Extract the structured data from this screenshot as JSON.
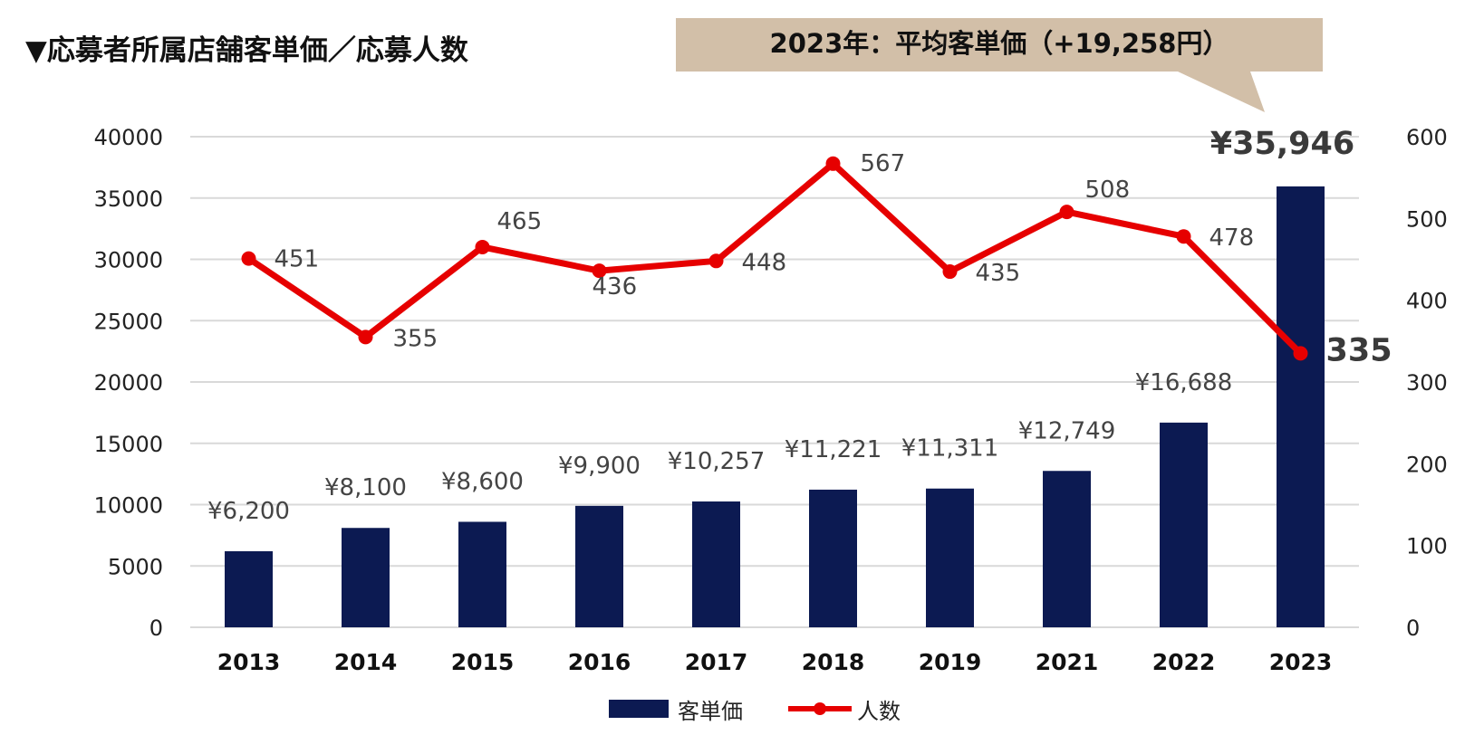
{
  "page_title": "▼応募者所属店舗客単価／応募人数",
  "callout_text": "2023年：平均客単価（+19,258円）",
  "colors": {
    "bar": "#0c1a52",
    "line": "#e60000",
    "callout_bg": "#d2bfa8",
    "grid": "#d9d9d9"
  },
  "legend": {
    "bar_label": "客単価",
    "line_label": "人数"
  },
  "chart_data": {
    "type": "bar+line",
    "title": "▼応募者所属店舗客単価／応募人数",
    "categories": [
      "2013",
      "2014",
      "2015",
      "2016",
      "2017",
      "2018",
      "2019",
      "2021",
      "2022",
      "2023"
    ],
    "y_left": {
      "min": 0,
      "max": 40000,
      "step": 5000,
      "ticks": [
        "0",
        "5000",
        "10000",
        "15000",
        "20000",
        "25000",
        "30000",
        "35000",
        "40000"
      ]
    },
    "y_right": {
      "min": 0,
      "max": 600,
      "step": 100,
      "ticks": [
        "0",
        "100",
        "200",
        "300",
        "400",
        "500",
        "600"
      ]
    },
    "series": [
      {
        "name": "客単価",
        "type": "bar",
        "axis": "left",
        "values": [
          6200,
          8100,
          8600,
          9900,
          10257,
          11221,
          11311,
          12749,
          16688,
          35946
        ],
        "labels": [
          "¥6,200",
          "¥8,100",
          "¥8,600",
          "¥9,900",
          "¥10,257",
          "¥11,221",
          "¥11,311",
          "¥12,749",
          "¥16,688",
          "¥35,946"
        ]
      },
      {
        "name": "人数",
        "type": "line",
        "axis": "right",
        "values": [
          451,
          355,
          465,
          436,
          448,
          567,
          435,
          508,
          478,
          335
        ],
        "labels": [
          "451",
          "355",
          "465",
          "436",
          "448",
          "567",
          "435",
          "508",
          "478",
          "335"
        ]
      }
    ],
    "grid": true,
    "legend_position": "bottom-center"
  }
}
